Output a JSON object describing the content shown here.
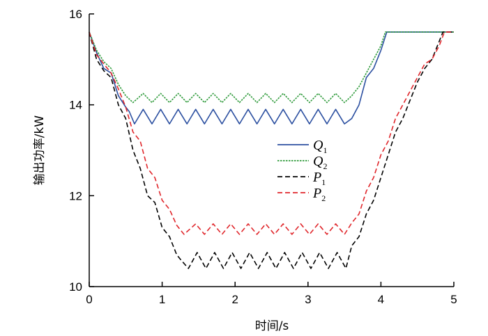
{
  "chart_data": {
    "type": "line",
    "title": "",
    "xlabel": "时间/s",
    "ylabel": "输出功率/kW",
    "xlim": [
      0,
      5
    ],
    "ylim": [
      10,
      16
    ],
    "xticks": [
      "0",
      "1",
      "2",
      "3",
      "4",
      "5"
    ],
    "yticks": [
      "10",
      "12",
      "14",
      "16"
    ],
    "grid": false,
    "legend_position": "center-right",
    "series": [
      {
        "name": "Q",
        "sub": "1",
        "color": "#2b4fa0",
        "dash": "solid",
        "points": [
          [
            0,
            15.6
          ],
          [
            0.1,
            15.15
          ],
          [
            0.2,
            14.8
          ],
          [
            0.3,
            14.7
          ],
          [
            0.4,
            14.2
          ],
          [
            0.5,
            13.95
          ],
          [
            0.55,
            13.85
          ],
          [
            0.62,
            13.58
          ],
          [
            0.74,
            13.9
          ],
          [
            0.86,
            13.58
          ],
          [
            0.98,
            13.9
          ],
          [
            1.1,
            13.58
          ],
          [
            1.22,
            13.9
          ],
          [
            1.34,
            13.58
          ],
          [
            1.46,
            13.9
          ],
          [
            1.58,
            13.58
          ],
          [
            1.7,
            13.9
          ],
          [
            1.82,
            13.58
          ],
          [
            1.94,
            13.9
          ],
          [
            2.06,
            13.58
          ],
          [
            2.18,
            13.9
          ],
          [
            2.3,
            13.58
          ],
          [
            2.42,
            13.9
          ],
          [
            2.54,
            13.58
          ],
          [
            2.66,
            13.9
          ],
          [
            2.78,
            13.58
          ],
          [
            2.9,
            13.9
          ],
          [
            3.02,
            13.58
          ],
          [
            3.14,
            13.9
          ],
          [
            3.26,
            13.58
          ],
          [
            3.38,
            13.9
          ],
          [
            3.5,
            13.58
          ],
          [
            3.6,
            13.7
          ],
          [
            3.7,
            14.0
          ],
          [
            3.8,
            14.6
          ],
          [
            3.9,
            14.8
          ],
          [
            4.0,
            15.2
          ],
          [
            4.08,
            15.6
          ],
          [
            5,
            15.6
          ]
        ]
      },
      {
        "name": "Q",
        "sub": "2",
        "color": "#2e9a3a",
        "dash": "dotted",
        "points": [
          [
            0,
            15.6
          ],
          [
            0.1,
            15.2
          ],
          [
            0.2,
            14.95
          ],
          [
            0.3,
            14.8
          ],
          [
            0.4,
            14.45
          ],
          [
            0.5,
            14.2
          ],
          [
            0.6,
            14.05
          ],
          [
            0.74,
            14.25
          ],
          [
            0.86,
            14.05
          ],
          [
            0.98,
            14.25
          ],
          [
            1.1,
            14.05
          ],
          [
            1.22,
            14.25
          ],
          [
            1.34,
            14.05
          ],
          [
            1.46,
            14.25
          ],
          [
            1.58,
            14.05
          ],
          [
            1.7,
            14.25
          ],
          [
            1.82,
            14.05
          ],
          [
            1.94,
            14.25
          ],
          [
            2.06,
            14.05
          ],
          [
            2.18,
            14.25
          ],
          [
            2.3,
            14.05
          ],
          [
            2.42,
            14.25
          ],
          [
            2.54,
            14.05
          ],
          [
            2.66,
            14.25
          ],
          [
            2.78,
            14.05
          ],
          [
            2.9,
            14.25
          ],
          [
            3.02,
            14.05
          ],
          [
            3.14,
            14.25
          ],
          [
            3.26,
            14.05
          ],
          [
            3.38,
            14.25
          ],
          [
            3.5,
            14.05
          ],
          [
            3.6,
            14.2
          ],
          [
            3.7,
            14.4
          ],
          [
            3.8,
            14.7
          ],
          [
            3.9,
            15.0
          ],
          [
            4.0,
            15.3
          ],
          [
            4.06,
            15.6
          ],
          [
            5,
            15.6
          ]
        ]
      },
      {
        "name": "P",
        "sub": "1",
        "color": "#000000",
        "dash": "dashed",
        "points": [
          [
            0,
            15.6
          ],
          [
            0.1,
            15.0
          ],
          [
            0.2,
            14.75
          ],
          [
            0.3,
            14.6
          ],
          [
            0.4,
            14.0
          ],
          [
            0.5,
            13.7
          ],
          [
            0.6,
            13.0
          ],
          [
            0.7,
            12.6
          ],
          [
            0.8,
            12.0
          ],
          [
            0.9,
            11.85
          ],
          [
            1.0,
            11.3
          ],
          [
            1.1,
            11.1
          ],
          [
            1.2,
            10.7
          ],
          [
            1.25,
            10.6
          ],
          [
            1.36,
            10.4
          ],
          [
            1.48,
            10.75
          ],
          [
            1.6,
            10.4
          ],
          [
            1.72,
            10.75
          ],
          [
            1.84,
            10.4
          ],
          [
            1.96,
            10.75
          ],
          [
            2.08,
            10.4
          ],
          [
            2.2,
            10.75
          ],
          [
            2.32,
            10.4
          ],
          [
            2.44,
            10.75
          ],
          [
            2.56,
            10.4
          ],
          [
            2.68,
            10.75
          ],
          [
            2.8,
            10.4
          ],
          [
            2.92,
            10.75
          ],
          [
            3.04,
            10.4
          ],
          [
            3.16,
            10.75
          ],
          [
            3.28,
            10.4
          ],
          [
            3.4,
            10.75
          ],
          [
            3.52,
            10.4
          ],
          [
            3.6,
            10.9
          ],
          [
            3.7,
            11.1
          ],
          [
            3.8,
            11.6
          ],
          [
            3.9,
            11.9
          ],
          [
            4.0,
            12.4
          ],
          [
            4.1,
            12.9
          ],
          [
            4.2,
            13.4
          ],
          [
            4.3,
            13.7
          ],
          [
            4.4,
            14.1
          ],
          [
            4.5,
            14.5
          ],
          [
            4.6,
            14.8
          ],
          [
            4.7,
            15.0
          ],
          [
            4.8,
            15.4
          ],
          [
            4.85,
            15.6
          ],
          [
            5,
            15.6
          ]
        ]
      },
      {
        "name": "P",
        "sub": "2",
        "color": "#e0262b",
        "dash": "dashed",
        "points": [
          [
            0,
            15.6
          ],
          [
            0.1,
            15.1
          ],
          [
            0.2,
            14.9
          ],
          [
            0.3,
            14.7
          ],
          [
            0.4,
            14.35
          ],
          [
            0.5,
            13.95
          ],
          [
            0.6,
            13.4
          ],
          [
            0.7,
            13.2
          ],
          [
            0.8,
            12.6
          ],
          [
            0.9,
            12.4
          ],
          [
            1.0,
            11.9
          ],
          [
            1.1,
            11.7
          ],
          [
            1.2,
            11.35
          ],
          [
            1.3,
            11.15
          ],
          [
            1.46,
            11.38
          ],
          [
            1.58,
            11.15
          ],
          [
            1.7,
            11.38
          ],
          [
            1.82,
            11.15
          ],
          [
            1.94,
            11.38
          ],
          [
            2.06,
            11.15
          ],
          [
            2.18,
            11.38
          ],
          [
            2.3,
            11.15
          ],
          [
            2.42,
            11.38
          ],
          [
            2.54,
            11.15
          ],
          [
            2.66,
            11.38
          ],
          [
            2.78,
            11.15
          ],
          [
            2.9,
            11.38
          ],
          [
            3.02,
            11.15
          ],
          [
            3.14,
            11.38
          ],
          [
            3.26,
            11.15
          ],
          [
            3.38,
            11.38
          ],
          [
            3.5,
            11.15
          ],
          [
            3.6,
            11.4
          ],
          [
            3.7,
            11.6
          ],
          [
            3.8,
            12.1
          ],
          [
            3.9,
            12.4
          ],
          [
            4.0,
            12.9
          ],
          [
            4.1,
            13.2
          ],
          [
            4.2,
            13.7
          ],
          [
            4.3,
            14.0
          ],
          [
            4.4,
            14.3
          ],
          [
            4.5,
            14.6
          ],
          [
            4.6,
            14.9
          ],
          [
            4.7,
            15.0
          ],
          [
            4.8,
            15.3
          ],
          [
            4.87,
            15.6
          ],
          [
            5,
            15.6
          ]
        ]
      }
    ]
  }
}
